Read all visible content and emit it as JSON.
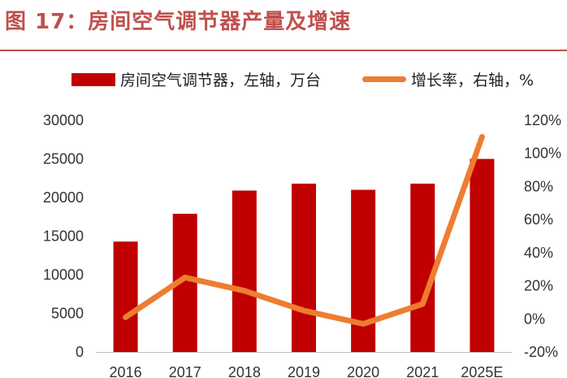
{
  "figure": {
    "title": "图 17：房间空气调节器产量及增速",
    "title_color": "#c0504d",
    "rule_color": "#c0504d"
  },
  "chart_data": {
    "type": "bar",
    "categories": [
      "2016",
      "2017",
      "2018",
      "2019",
      "2020",
      "2021",
      "2025E"
    ],
    "series": [
      {
        "name": "房间空气调节器，左轴，万台",
        "type": "bar",
        "axis": "left",
        "color": "#c00000",
        "values": [
          14300,
          17900,
          20900,
          21800,
          21000,
          21800,
          25000
        ]
      },
      {
        "name": "增长率，右轴，%",
        "type": "line",
        "axis": "right",
        "color": "#ed7d31",
        "values": [
          1,
          25,
          17,
          5,
          -3,
          9,
          110
        ]
      }
    ],
    "y_left": {
      "min": 0,
      "max": 30000,
      "ticks": [
        "0",
        "5000",
        "10000",
        "15000",
        "20000",
        "25000",
        "30000"
      ]
    },
    "y_right": {
      "min": -20,
      "max": 120,
      "ticks": [
        "-20%",
        "0%",
        "20%",
        "40%",
        "60%",
        "80%",
        "100%",
        "120%"
      ]
    },
    "legend_position": "top",
    "grid": false
  }
}
